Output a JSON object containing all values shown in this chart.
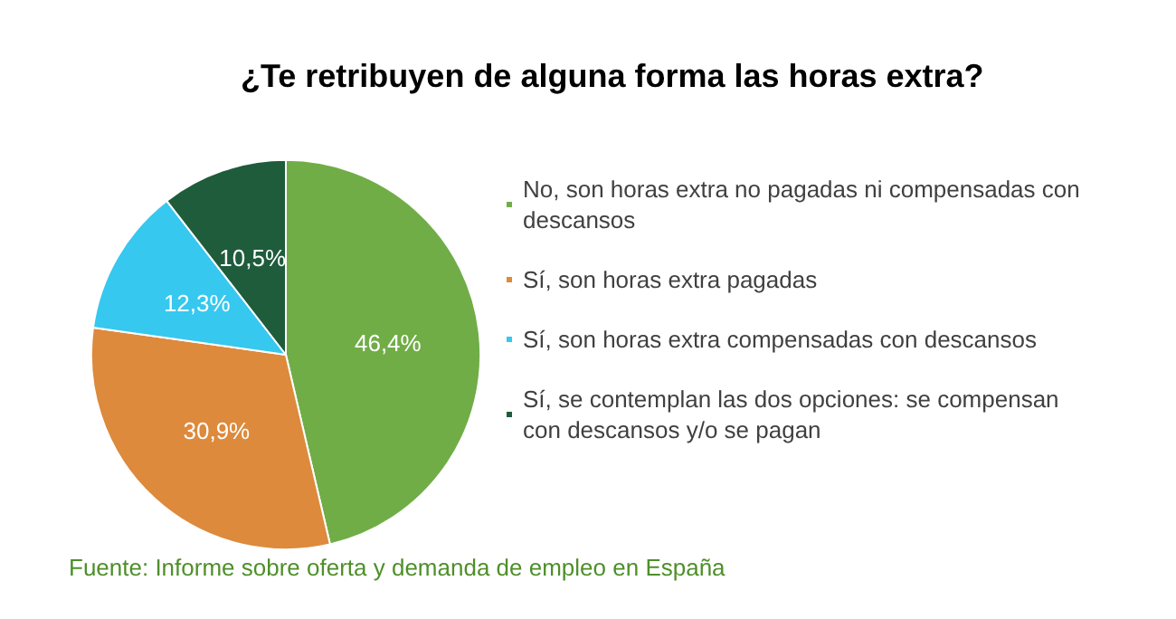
{
  "chart_data": {
    "type": "pie",
    "title": "¿Te retribuyen de alguna forma las horas extra?",
    "categories": [
      "No, son horas extra no pagadas ni compensadas con descansos",
      "Sí, son horas extra pagadas",
      "Sí, son horas extra compensadas con descansos",
      "Sí, se contemplan las dos opciones: se compensan con descansos y/o se pagan"
    ],
    "values": [
      46.4,
      30.9,
      12.3,
      10.5
    ],
    "value_labels": [
      "46,4%",
      "30,9%",
      "12,3%",
      "10,5%"
    ],
    "colors": [
      "#70ad47",
      "#dd8a3c",
      "#36c8ef",
      "#1f5c3c"
    ],
    "legend": "right",
    "annotations": [
      "Fuente: Informe sobre oferta y demanda de empleo en España"
    ]
  }
}
